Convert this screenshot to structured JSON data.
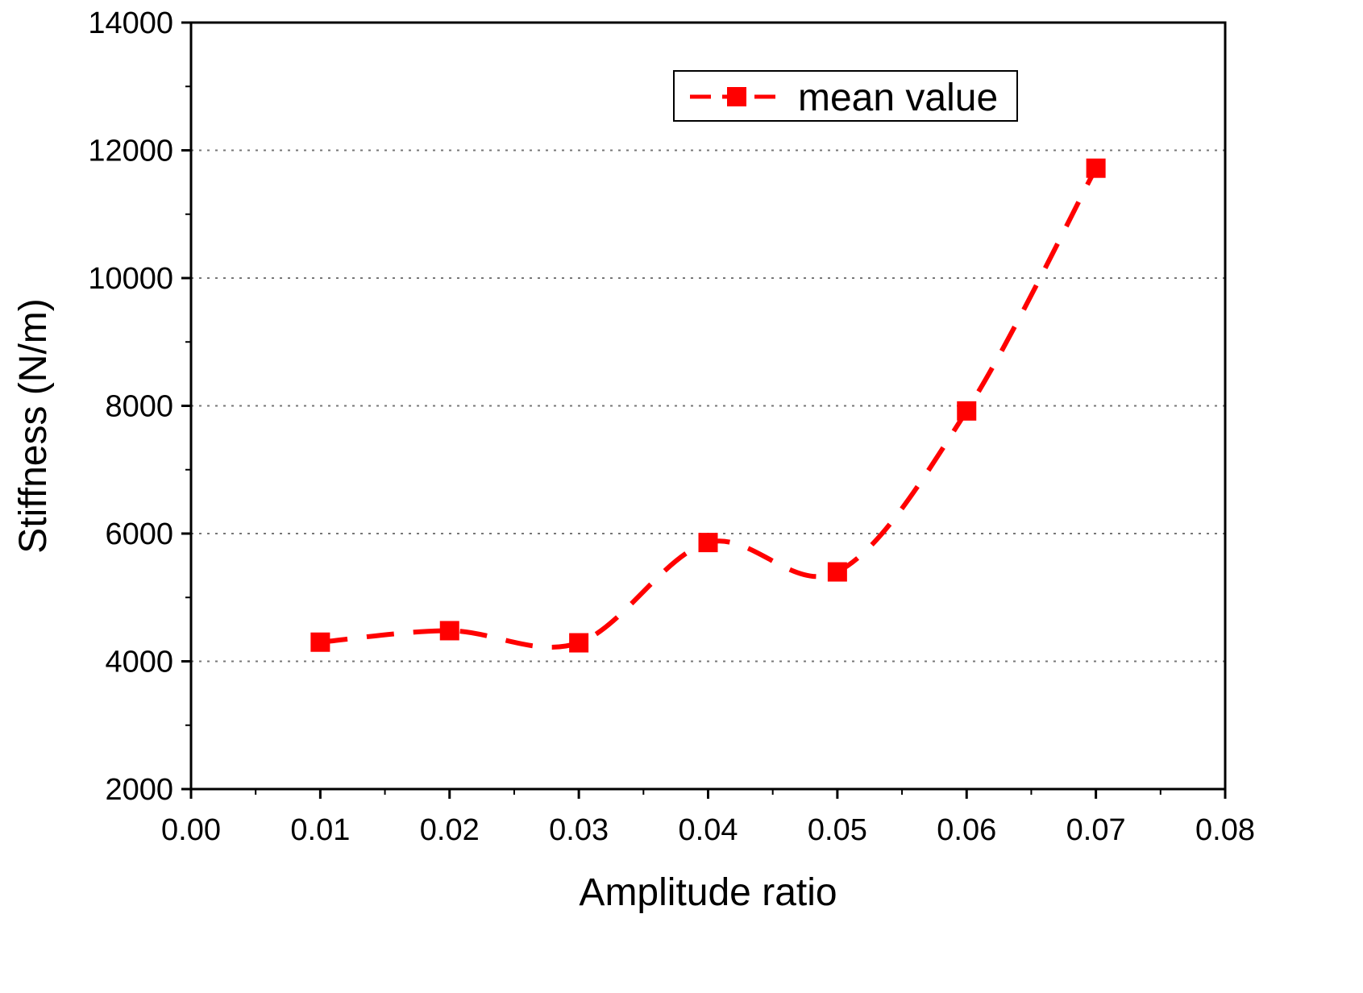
{
  "chart_data": {
    "type": "line",
    "title": "",
    "xlabel": "Amplitude ratio",
    "ylabel": "Stiffness (N/m)",
    "xlim": [
      0.0,
      0.08
    ],
    "ylim": [
      2000,
      14000
    ],
    "x_ticks": [
      "0.00",
      "0.01",
      "0.02",
      "0.03",
      "0.04",
      "0.05",
      "0.06",
      "0.07",
      "0.08"
    ],
    "y_ticks": [
      "2000",
      "4000",
      "6000",
      "8000",
      "10000",
      "12000",
      "14000"
    ],
    "grid": "horizontal dotted",
    "legend_position": "top-right",
    "series": [
      {
        "name": "mean value",
        "color": "#ff0000",
        "line_style": "dashed",
        "marker": "square",
        "x": [
          0.01,
          0.02,
          0.03,
          0.04,
          0.05,
          0.06,
          0.07
        ],
        "y": [
          4300,
          4480,
          4290,
          5860,
          5400,
          7920,
          11720
        ]
      }
    ]
  }
}
